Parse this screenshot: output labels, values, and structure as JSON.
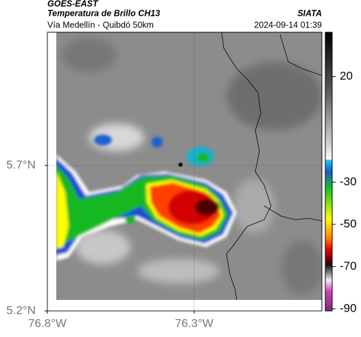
{
  "header": {
    "title": "GOES-EAST",
    "subtitle": "Temperatura de Brillo CH13",
    "route": "Vía Medellín - Quibdó 50km",
    "source": "SIATA",
    "timestamp": "2024-09-14 01:39"
  },
  "map": {
    "xlim": [
      -76.8,
      -75.865
    ],
    "ylim": [
      5.2,
      6.158
    ],
    "xticks": [
      {
        "value": -76.8,
        "label": "76.8°W"
      },
      {
        "value": -76.3,
        "label": "76.3°W"
      }
    ],
    "yticks": [
      {
        "value": 5.7,
        "label": "5.7°N"
      },
      {
        "value": 5.2,
        "label": "5.2°N"
      }
    ],
    "grid": true
  },
  "colorbar": {
    "lim": [
      -91,
      41
    ],
    "ticks": [
      20,
      -30,
      -50,
      -70,
      -90
    ]
  }
}
